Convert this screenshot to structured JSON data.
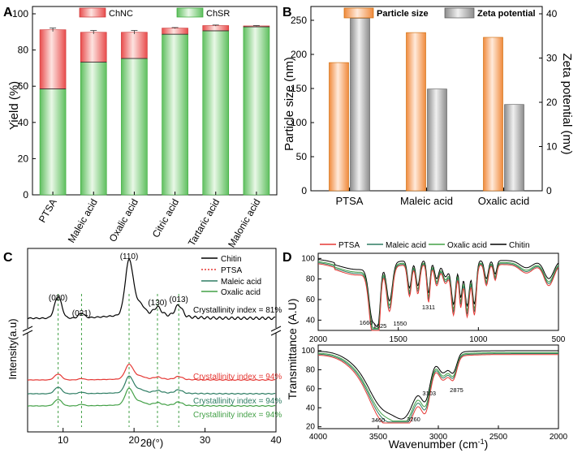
{
  "colors": {
    "green": "#5fbf5f",
    "green_light": "#c9ecc6",
    "red": "#e84c4c",
    "red_light": "#fbd0cc",
    "orange": "#f08a3c",
    "orange_light": "#fddcc1",
    "gray": "#8c8c8c",
    "gray_light": "#e6e6e6",
    "chitin": "#000000",
    "ptsa": "#e53935",
    "maleic": "#2e7d63",
    "oxalic": "#43a047"
  },
  "chart_data": [
    {
      "panel": "A",
      "type": "bar",
      "stacked": true,
      "categories": [
        "PTSA",
        "Maleic acid",
        "Oxalic acid",
        "Citric acid",
        "Tartaric acid",
        "Malonic acid"
      ],
      "series": [
        {
          "name": "ChSR",
          "values": [
            58.5,
            73.3,
            75.3,
            88.7,
            90.6,
            92.8
          ]
        },
        {
          "name": "ChNC",
          "values": [
            32.7,
            16.5,
            14.5,
            3.4,
            2.9,
            0.5
          ]
        }
      ],
      "error_top": [
        1,
        1,
        1,
        0.3,
        0.3,
        0.2
      ],
      "ylabel": "Yield (%)",
      "ylim": [
        0,
        100
      ],
      "yticks": [
        "0",
        "20",
        "40",
        "60",
        "80",
        "100"
      ],
      "legend": [
        "ChNC",
        "ChSR"
      ],
      "panel_label": "A"
    },
    {
      "panel": "B",
      "type": "bar",
      "categories": [
        "PTSA",
        "Maleic acid",
        "Oxalic acid"
      ],
      "series": [
        {
          "name": "Particle size",
          "axis": "left",
          "values": [
            188,
            232,
            225
          ]
        },
        {
          "name": "Zeta potential",
          "axis": "right",
          "values": [
            39,
            23,
            19.5
          ]
        }
      ],
      "ylabel": "Particle size (nm)",
      "ylabel_right": "Zeta potential (mv)",
      "ylim": [
        0,
        260
      ],
      "ylim_right": [
        0,
        41.6
      ],
      "yticks": [
        "0",
        "50",
        "100",
        "150",
        "200",
        "250"
      ],
      "yticks_right": [
        "0",
        "10",
        "20",
        "30",
        "40"
      ],
      "panel_label": "B"
    },
    {
      "panel": "C",
      "type": "line",
      "xlabel": "2θ(°)",
      "ylabel": "Intensity(a.u)",
      "xlim": [
        5,
        40
      ],
      "xticks": [
        "10",
        "20",
        "30",
        "40"
      ],
      "series": [
        {
          "name": "Chitin",
          "linestyle": "solid"
        },
        {
          "name": "PTSA",
          "linestyle": "dotted"
        },
        {
          "name": "Maleic acid",
          "linestyle": "solid"
        },
        {
          "name": "Oxalic acid",
          "linestyle": "solid"
        }
      ],
      "peaks": [
        {
          "label": "(020)",
          "x": 9.3
        },
        {
          "label": "(021)",
          "x": 12.6
        },
        {
          "label": "(110)",
          "x": 19.3
        },
        {
          "label": "(130)",
          "x": 23.3
        },
        {
          "label": "(013)",
          "x": 26.3
        }
      ],
      "annotations": [
        "Crystallinity index = 81%",
        "Crystallinity index = 94%",
        "Crystallinity index = 94%",
        "Crystallinity index = 94%"
      ],
      "panel_label": "C"
    },
    {
      "panel": "D",
      "type": "line",
      "xlabel": "Wavenumber (cm",
      "xlabel_sup": "-1",
      "xlabel_end": ")",
      "ylabel": "Transmittance (A.U)",
      "top_xlim": [
        2000,
        500
      ],
      "top_xticks": [
        "2000",
        "1500",
        "1000",
        "500"
      ],
      "top_yticks": [
        "40",
        "60",
        "80",
        "100"
      ],
      "bottom_xlim": [
        4000,
        2000
      ],
      "bottom_xticks": [
        "4000",
        "3500",
        "3000",
        "2500",
        "2000"
      ],
      "bottom_yticks": [
        "20",
        "40",
        "60",
        "80",
        "100"
      ],
      "series": [
        "PTSA",
        "Maleic acid",
        "Oxalic acid",
        "Chitin"
      ],
      "top_peaks": [
        "1660",
        "1625",
        "1550",
        "1311"
      ],
      "bottom_peaks": [
        "3460",
        "3260",
        "3103",
        "2875"
      ],
      "panel_label": "D"
    }
  ]
}
